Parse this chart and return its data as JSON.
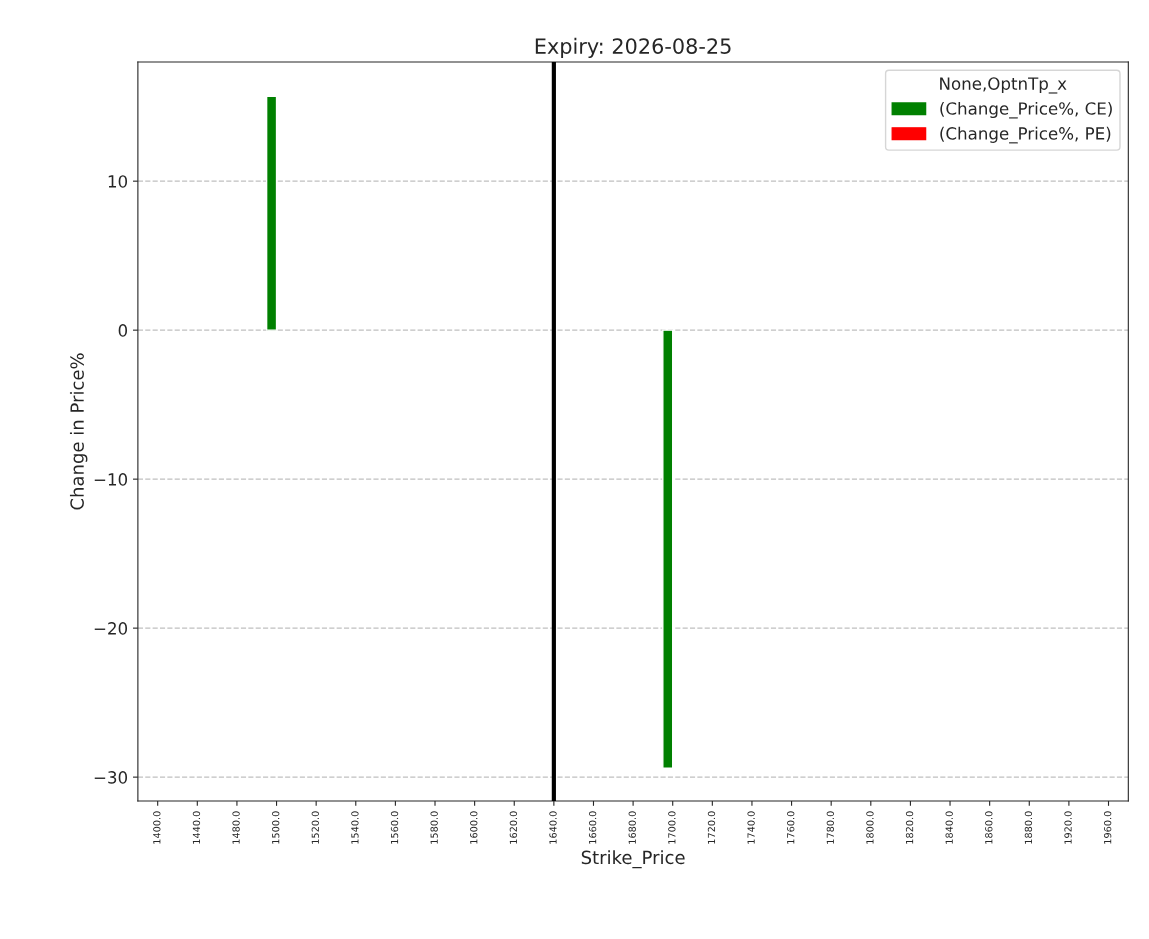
{
  "chart_data": {
    "type": "bar",
    "title": "Expiry: 2026-08-25",
    "xlabel": "Strike_Price",
    "ylabel": "Change in Price%",
    "legend_title": "None,OptnTp_x",
    "categories": [
      "1400.0",
      "1440.0",
      "1480.0",
      "1500.0",
      "1520.0",
      "1540.0",
      "1560.0",
      "1580.0",
      "1600.0",
      "1620.0",
      "1640.0",
      "1660.0",
      "1680.0",
      "1700.0",
      "1720.0",
      "1740.0",
      "1760.0",
      "1780.0",
      "1800.0",
      "1820.0",
      "1840.0",
      "1860.0",
      "1880.0",
      "1920.0",
      "1960.0"
    ],
    "series": [
      {
        "name": "(Change_Price%, CE)",
        "color": "#008000",
        "values": [
          null,
          null,
          null,
          15.7,
          null,
          null,
          null,
          null,
          null,
          null,
          null,
          null,
          null,
          -29.4,
          null,
          null,
          null,
          null,
          null,
          null,
          null,
          null,
          null,
          null,
          null
        ]
      },
      {
        "name": "(Change_Price%, PE)",
        "color": "#ff0000",
        "values": [
          null,
          null,
          null,
          null,
          null,
          null,
          null,
          null,
          null,
          null,
          null,
          null,
          null,
          null,
          null,
          null,
          null,
          null,
          null,
          null,
          null,
          null,
          null,
          null,
          null
        ]
      }
    ],
    "ylim": [
      -31.6,
      18
    ],
    "yticks": [
      {
        "value": -30,
        "label": "−30"
      },
      {
        "value": -20,
        "label": "−20"
      },
      {
        "value": -10,
        "label": "−10"
      },
      0,
      10
    ],
    "ref_lines": [
      {
        "axis": "x",
        "value": "1640.0",
        "color": "#000000"
      }
    ],
    "grid": "y",
    "legend": "top right"
  }
}
